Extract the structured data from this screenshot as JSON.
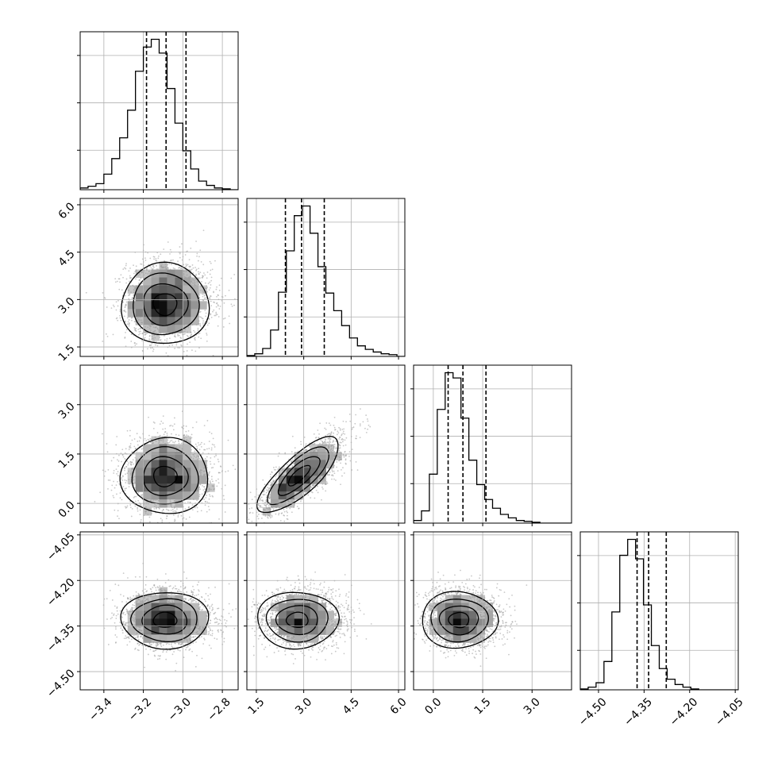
{
  "chart_data": {
    "type": "corner",
    "grid": true,
    "parameters": [
      {
        "range": [
          -3.52,
          -2.72
        ],
        "ticks": [
          -3.4,
          -3.2,
          -3.0,
          -2.8
        ],
        "tick_labels": [
          "−3.4",
          "−3.2",
          "−3.0",
          "−2.8"
        ],
        "quantiles": [
          -3.184,
          -3.085,
          -2.984
        ],
        "center": -3.085,
        "sigma": 0.1
      },
      {
        "range": [
          1.2,
          6.2
        ],
        "ticks": [
          1.5,
          3.0,
          4.5,
          6.0
        ],
        "tick_labels": [
          "1.5",
          "3.0",
          "4.5",
          "6.0"
        ],
        "quantiles": [
          2.42,
          2.93,
          3.65
        ],
        "center": 2.9,
        "sigma": 0.58
      },
      {
        "range": [
          -0.6,
          4.2
        ],
        "ticks": [
          0.0,
          1.5,
          3.0
        ],
        "tick_labels": [
          "0.0",
          "1.5",
          "3.0"
        ],
        "quantiles": [
          0.45,
          0.9,
          1.6
        ],
        "center": 0.82,
        "sigma": 0.52
      },
      {
        "range": [
          -4.56,
          -4.04
        ],
        "ticks": [
          -4.5,
          -4.35,
          -4.2,
          -4.05
        ],
        "tick_labels": [
          "−4.50",
          "−4.35",
          "−4.20",
          "−4.05"
        ],
        "quantiles": [
          -4.373,
          -4.335,
          -4.277
        ],
        "center": -4.33,
        "sigma": 0.042
      }
    ],
    "histograms": [
      {
        "param": 0,
        "bin_edges_min": -3.52,
        "bin_width": 0.04,
        "counts": [
          2,
          4,
          7,
          18,
          36,
          60,
          92,
          137,
          165,
          174,
          158,
          117,
          77,
          45,
          24,
          10,
          5,
          2,
          1,
          0
        ]
      },
      {
        "param": 1,
        "bin_edges_min": 1.2,
        "bin_width": 0.25,
        "counts": [
          1,
          3,
          9,
          30,
          73,
          120,
          160,
          171,
          140,
          102,
          72,
          52,
          35,
          21,
          12,
          8,
          5,
          3,
          2,
          0
        ]
      },
      {
        "param": 2,
        "bin_edges_min": -0.6,
        "bin_width": 0.24,
        "counts": [
          3,
          14,
          56,
          130,
          172,
          166,
          120,
          72,
          44,
          27,
          17,
          10,
          6,
          3,
          2,
          1,
          0,
          0,
          0,
          0
        ]
      },
      {
        "param": 3,
        "bin_edges_min": -4.56,
        "bin_width": 0.026,
        "counts": [
          1,
          3,
          8,
          32,
          88,
          152,
          170,
          148,
          96,
          50,
          24,
          12,
          6,
          3,
          1,
          0,
          0,
          0,
          0,
          0
        ]
      }
    ],
    "joint_panels": [
      {
        "x": 0,
        "y": 1,
        "corr": 0.0,
        "mode": [
          -3.09,
          2.85
        ]
      },
      {
        "x": 0,
        "y": 2,
        "corr": 0.0,
        "mode": [
          -3.09,
          0.82
        ]
      },
      {
        "x": 1,
        "y": 2,
        "corr": 0.78,
        "mode": [
          2.85,
          0.85
        ]
      },
      {
        "x": 0,
        "y": 3,
        "corr": 0.0,
        "mode": [
          -3.09,
          -4.33
        ]
      },
      {
        "x": 1,
        "y": 3,
        "corr": 0.0,
        "mode": [
          2.8,
          -4.33
        ]
      },
      {
        "x": 2,
        "y": 3,
        "corr": 0.0,
        "mode": [
          0.78,
          -4.33
        ]
      }
    ]
  }
}
